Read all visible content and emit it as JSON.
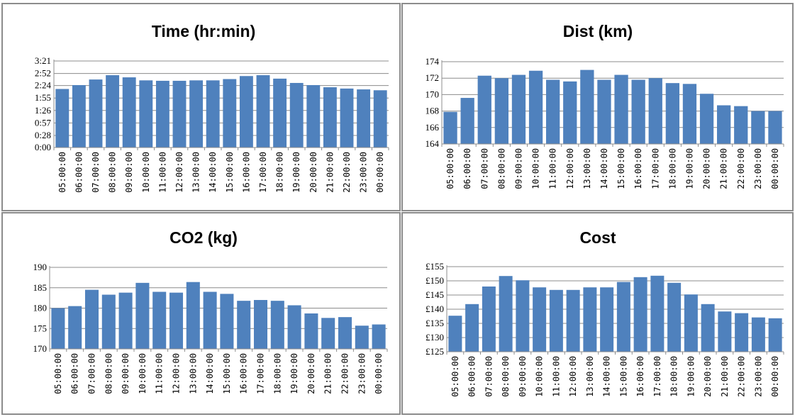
{
  "chart_data": [
    {
      "type": "bar",
      "title": "Time (hr:min)",
      "xlabel": "",
      "ylabel": "",
      "categories": [
        "05:00:00",
        "06:00:00",
        "07:00:00",
        "08:00:00",
        "09:00:00",
        "10:00:00",
        "11:00:00",
        "12:00:00",
        "13:00:00",
        "14:00:00",
        "15:00:00",
        "16:00:00",
        "17:00:00",
        "18:00:00",
        "19:00:00",
        "20:00:00",
        "21:00:00",
        "22:00:00",
        "23:00:00",
        "00:00:00"
      ],
      "values": [
        136,
        145,
        158,
        168,
        163,
        156,
        155,
        155,
        156,
        156,
        159,
        166,
        168,
        160,
        150,
        145,
        140,
        137,
        135,
        133
      ],
      "value_unit": "minutes",
      "ylim": [
        0,
        201
      ],
      "yticks": [
        0,
        28,
        57,
        86,
        115,
        144,
        172,
        201
      ],
      "ytick_labels": [
        "0:00",
        "0:28",
        "0:57",
        "1:26",
        "1:55",
        "2:24",
        "2:52",
        "3:21"
      ],
      "grid": true,
      "bar_color": "#4f81bd"
    },
    {
      "type": "bar",
      "title": "Dist (km)",
      "xlabel": "",
      "ylabel": "",
      "categories": [
        "05:00:00",
        "06:00:00",
        "07:00:00",
        "08:00:00",
        "09:00:00",
        "10:00:00",
        "11:00:00",
        "12:00:00",
        "13:00:00",
        "14:00:00",
        "15:00:00",
        "16:00:00",
        "17:00:00",
        "18:00:00",
        "19:00:00",
        "20:00:00",
        "21:00:00",
        "22:00:00",
        "23:00:00",
        "00:00:00"
      ],
      "values": [
        167.9,
        169.6,
        172.3,
        172.0,
        172.4,
        172.9,
        171.8,
        171.6,
        173.0,
        171.8,
        172.4,
        171.8,
        172.0,
        171.4,
        171.3,
        170.1,
        168.7,
        168.6,
        168.0,
        168.0
      ],
      "ylim": [
        164,
        174
      ],
      "yticks": [
        164,
        166,
        168,
        170,
        172,
        174
      ],
      "ytick_labels": [
        "164",
        "166",
        "168",
        "170",
        "172",
        "174"
      ],
      "grid": true,
      "bar_color": "#4f81bd"
    },
    {
      "type": "bar",
      "title": "CO2 (kg)",
      "xlabel": "",
      "ylabel": "",
      "categories": [
        "05:00:00",
        "06:00:00",
        "07:00:00",
        "08:00:00",
        "09:00:00",
        "10:00:00",
        "11:00:00",
        "12:00:00",
        "13:00:00",
        "14:00:00",
        "15:00:00",
        "16:00:00",
        "17:00:00",
        "18:00:00",
        "19:00:00",
        "20:00:00",
        "21:00:00",
        "22:00:00",
        "23:00:00",
        "00:00:00"
      ],
      "values": [
        180.0,
        180.5,
        184.5,
        183.3,
        183.8,
        186.2,
        184.0,
        183.8,
        186.4,
        184.0,
        183.5,
        181.8,
        182.0,
        181.8,
        180.7,
        178.7,
        177.6,
        177.8,
        175.7,
        176.0
      ],
      "ylim": [
        170,
        190
      ],
      "yticks": [
        170,
        175,
        180,
        185,
        190
      ],
      "ytick_labels": [
        "170",
        "175",
        "180",
        "185",
        "190"
      ],
      "grid": true,
      "bar_color": "#4f81bd"
    },
    {
      "type": "bar",
      "title": "Cost",
      "xlabel": "",
      "ylabel": "",
      "categories": [
        "05:00:00",
        "06:00:00",
        "07:00:00",
        "08:00:00",
        "09:00:00",
        "10:00:00",
        "11:00:00",
        "12:00:00",
        "13:00:00",
        "14:00:00",
        "15:00:00",
        "16:00:00",
        "17:00:00",
        "18:00:00",
        "19:00:00",
        "20:00:00",
        "21:00:00",
        "22:00:00",
        "23:00:00",
        "00:00:00"
      ],
      "values": [
        137.7,
        141.8,
        148.0,
        151.7,
        150.2,
        147.7,
        146.8,
        146.8,
        147.7,
        147.7,
        149.6,
        151.3,
        151.8,
        149.3,
        145.2,
        141.8,
        139.2,
        138.6,
        137.1,
        136.8
      ],
      "ylim": [
        125,
        155
      ],
      "yticks": [
        125,
        130,
        135,
        140,
        145,
        150,
        155
      ],
      "ytick_labels": [
        "£125",
        "£130",
        "£135",
        "£140",
        "£145",
        "£150",
        "£155"
      ],
      "grid": true,
      "bar_color": "#4f81bd"
    }
  ]
}
